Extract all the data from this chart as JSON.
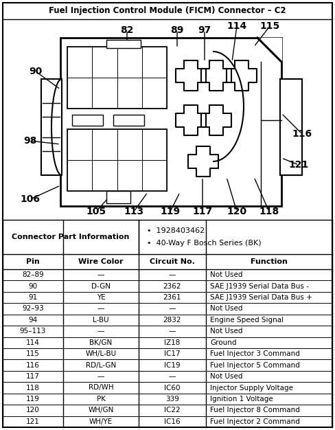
{
  "title": "Fuel Injection Control Module (FICM) Connector – C2",
  "connector_info_label": "Connector Part Information",
  "connector_info_bullets": [
    "1928403462",
    "40-Way F Bosch Series (BK)"
  ],
  "table_headers": [
    "Pin",
    "Wire Color",
    "Circuit No.",
    "Function"
  ],
  "table_rows": [
    [
      "82–89",
      "—",
      "—",
      "Not Used"
    ],
    [
      "90",
      "D-GN",
      "2362",
      "SAE J1939 Serial Data Bus -"
    ],
    [
      "91",
      "YE",
      "2361",
      "SAE J1939 Serial Data Bus +"
    ],
    [
      "92–93",
      "—",
      "—",
      "Not Used"
    ],
    [
      "94",
      "L-BU",
      "2832",
      "Engine Speed Signal"
    ],
    [
      "95–113",
      "—",
      "—",
      "Not Used"
    ],
    [
      "114",
      "BK/GN",
      "IZ18",
      "Ground"
    ],
    [
      "115",
      "WH/L-BU",
      "IC17",
      "Fuel Injector 3 Command"
    ],
    [
      "116",
      "RD/L-GN",
      "IC19",
      "Fuel Injector 5 Command"
    ],
    [
      "117",
      "—",
      "—",
      "Not Used"
    ],
    [
      "118",
      "RD/WH",
      "IC60",
      "Injector Supply Voltage"
    ],
    [
      "119",
      "PK",
      "339",
      "Ignition 1 Voltage"
    ],
    [
      "120",
      "WH/GN",
      "IC22",
      "Fuel Injector 8 Command"
    ],
    [
      "121",
      "WH/YE",
      "IC16",
      "Fuel Injector 2 Command"
    ]
  ],
  "bg_color": "#ffffff",
  "text_color": "#000000",
  "figw": 4.88,
  "figh": 6.26,
  "dpi": 100
}
